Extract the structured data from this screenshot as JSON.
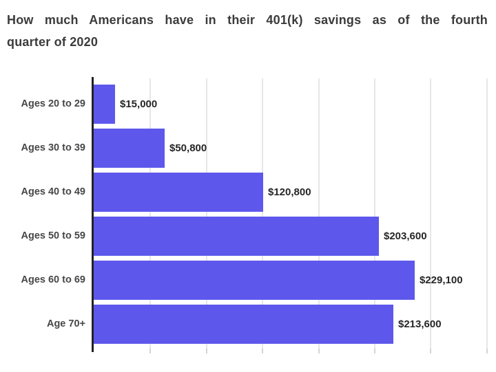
{
  "title": {
    "line1": "How much Americans have in their 401(k) savings as of the fourth",
    "line2": "quarter of 2020",
    "full": "How much Americans have in their 401(k) savings as of the fourth quarter of 2020"
  },
  "colors": {
    "background": "#ffffff",
    "bar": "#5e57ec",
    "axis": "#222222",
    "gridline": "#e6e6e6",
    "tick": "#d4d4d4",
    "title_text": "#3b3b3b",
    "category_text": "#474747",
    "value_text": "#262626"
  },
  "chart_data": {
    "type": "bar",
    "orientation": "horizontal",
    "title": "How much Americans have in their 401(k) savings as of the fourth quarter of 2020",
    "categories": [
      "Ages 20 to 29",
      "Ages 30 to 39",
      "Ages 40 to 49",
      "Ages 50 to 59",
      "Ages 60 to 69",
      "Age 70+"
    ],
    "values": [
      15000,
      50800,
      120800,
      203600,
      229100,
      213600
    ],
    "value_labels": [
      "$15,000",
      "$50,800",
      "$120,800",
      "$203,600",
      "$229,100",
      "$213,600"
    ],
    "xlabel": "",
    "ylabel": "",
    "xlim": [
      0,
      284000
    ],
    "gridline_interval": 40000,
    "grid": true,
    "legend": false,
    "bar_color": "#5e57ec"
  }
}
